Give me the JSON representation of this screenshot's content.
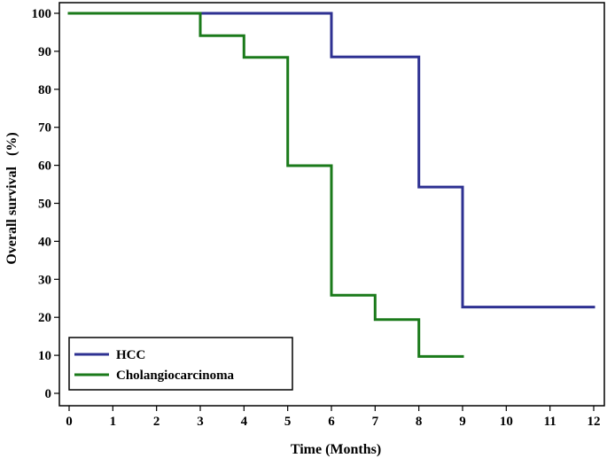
{
  "chart_data": {
    "type": "line",
    "step": true,
    "xlabel": "Time (Months)",
    "ylabel": "Overall survival   (%)",
    "xlim": [
      0,
      12
    ],
    "ylim": [
      0,
      100
    ],
    "xticks": [
      0,
      1,
      2,
      3,
      4,
      5,
      6,
      7,
      8,
      9,
      10,
      11,
      12
    ],
    "yticks": [
      0,
      10,
      20,
      30,
      40,
      50,
      60,
      70,
      80,
      90,
      100
    ],
    "grid": false,
    "legend_position": "bottom-left",
    "series": [
      {
        "name": "HCC",
        "color": "#2e3192",
        "points": [
          [
            0,
            100
          ],
          [
            6,
            100
          ],
          [
            6,
            88.5
          ],
          [
            8,
            88.5
          ],
          [
            8,
            54.3
          ],
          [
            9,
            54.3
          ],
          [
            9,
            22.7
          ],
          [
            12,
            22.7
          ]
        ]
      },
      {
        "name": "Cholangiocarcinoma",
        "color": "#1a7a1a",
        "points": [
          [
            0,
            100
          ],
          [
            3,
            100
          ],
          [
            3,
            94.1
          ],
          [
            4,
            94.1
          ],
          [
            4,
            88.4
          ],
          [
            5,
            88.4
          ],
          [
            5,
            59.9
          ],
          [
            6,
            59.9
          ],
          [
            6,
            25.8
          ],
          [
            7,
            25.8
          ],
          [
            7,
            19.4
          ],
          [
            8,
            19.4
          ],
          [
            8,
            9.7
          ],
          [
            9,
            9.7
          ]
        ]
      }
    ]
  }
}
